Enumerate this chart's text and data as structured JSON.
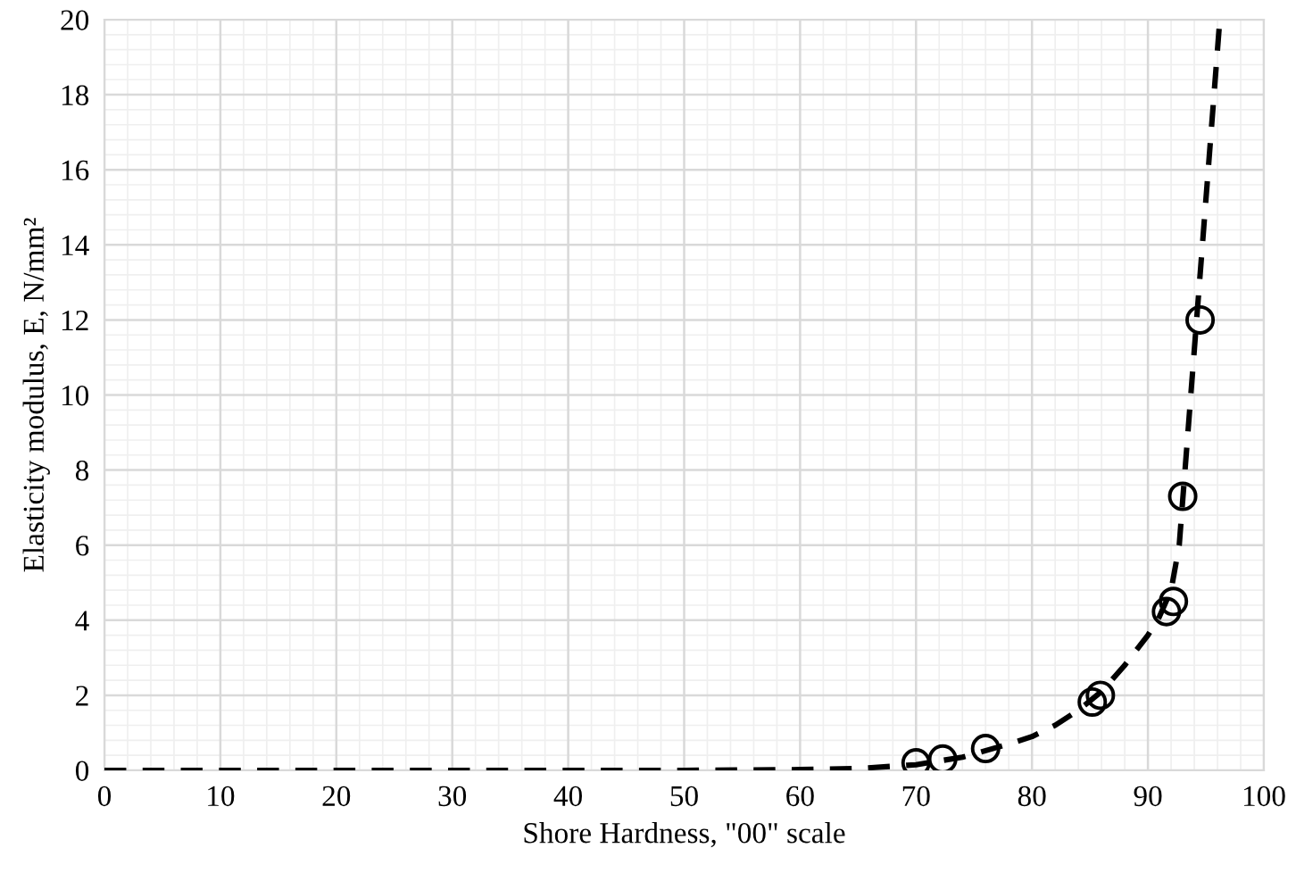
{
  "chart_data": {
    "type": "scatter",
    "xlabel": "Shore Hardness, \"00\" scale",
    "ylabel": "Elasticity modulus, E, N/mm²",
    "xlim": [
      0,
      100
    ],
    "ylim": [
      0,
      20
    ],
    "xticks": [
      0,
      10,
      20,
      30,
      40,
      50,
      60,
      70,
      80,
      90,
      100
    ],
    "yticks": [
      0,
      2,
      4,
      6,
      8,
      10,
      12,
      14,
      16,
      18,
      20
    ],
    "grid": true,
    "series": [
      {
        "color": "#000000",
        "marker": "circle",
        "x": [
          70.0,
          72.3,
          76.0,
          85.2,
          85.9,
          91.6,
          92.2,
          93.0,
          94.5
        ],
        "values": [
          0.2,
          0.3,
          0.58,
          1.82,
          2.0,
          4.23,
          4.5,
          7.3,
          12.0
        ]
      },
      {
        "type": "line",
        "color": "#000000",
        "marker": "none",
        "line_style": "dashed",
        "x": [
          0,
          10,
          20,
          30,
          40,
          50,
          60,
          65,
          70,
          74,
          78,
          80,
          82,
          84,
          86,
          88,
          90,
          91,
          92,
          92.7,
          93.2,
          93.7,
          94.2,
          94.7,
          95.2,
          95.7,
          96.2
        ],
        "values": [
          0,
          0,
          0,
          0,
          0,
          0,
          0.02,
          0.05,
          0.15,
          0.35,
          0.7,
          0.9,
          1.2,
          1.6,
          2.1,
          2.8,
          3.6,
          4.1,
          4.8,
          6,
          8,
          10,
          12,
          14,
          16,
          18,
          20
        ]
      }
    ]
  }
}
